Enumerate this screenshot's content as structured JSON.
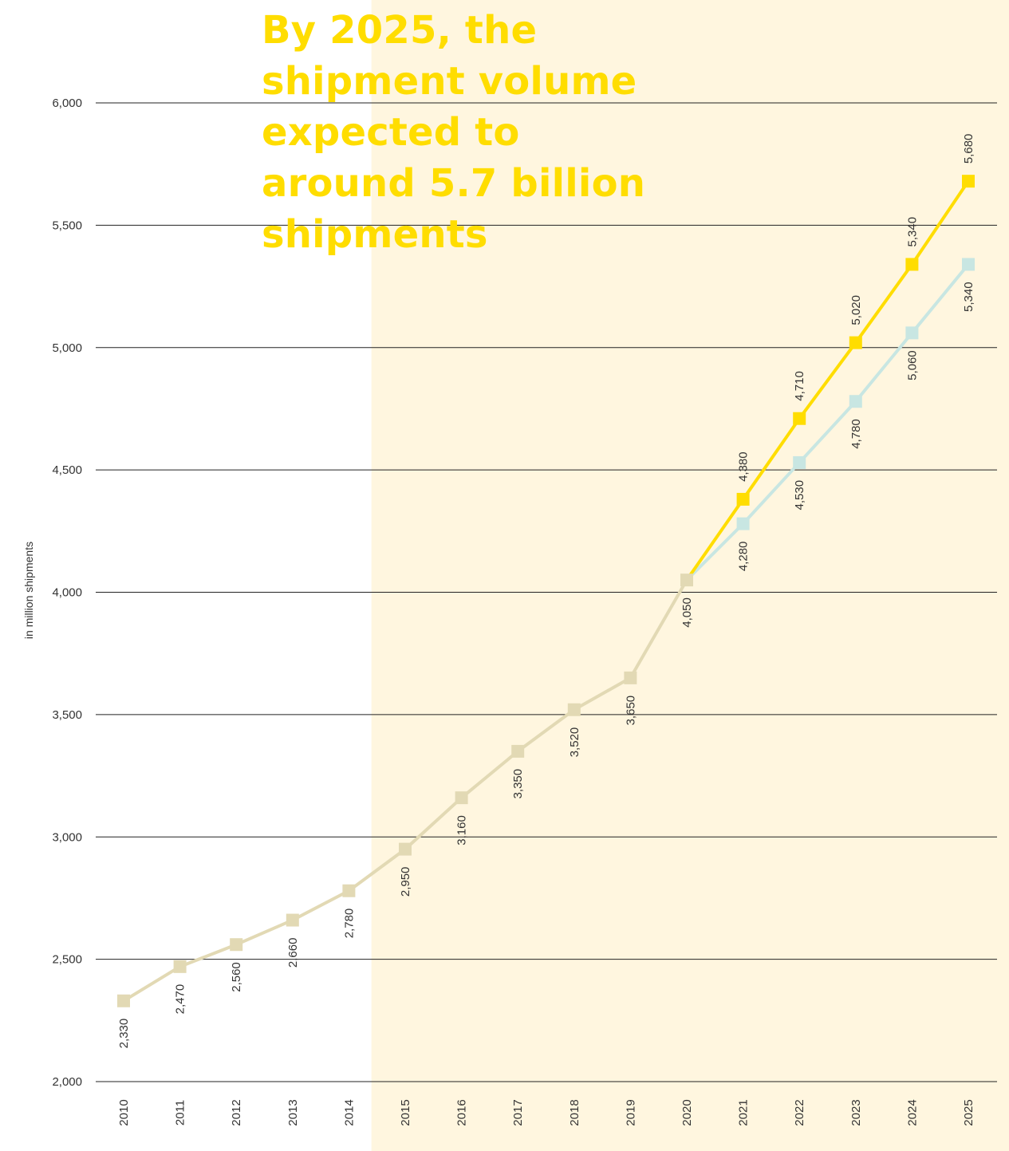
{
  "headline": "By 2025, the shipment volume expected to around 5.7 billion shipments",
  "colors": {
    "history": "#e2d9b4",
    "upper": "#ffdd00",
    "lower": "#c8e6e2",
    "forecast_bg": "#fff6df",
    "grid": "#222222"
  },
  "chart_data": {
    "type": "line",
    "title": "",
    "xlabel": "",
    "ylabel": "in million shipments",
    "ylim": [
      2000,
      6000
    ],
    "yticks": [
      2000,
      2500,
      3000,
      3500,
      4000,
      4500,
      5000,
      5500,
      6000
    ],
    "ytick_labels": [
      "2,000",
      "2,500",
      "3,000",
      "3,500",
      "4,000",
      "4,500",
      "5,000",
      "5,500",
      "6,000"
    ],
    "x": [
      "2010",
      "2011",
      "2012",
      "2013",
      "2014",
      "2015",
      "2016",
      "2017",
      "2018",
      "2019",
      "2020",
      "2021",
      "2022",
      "2023",
      "2024",
      "2025"
    ],
    "shaded_from": "2015",
    "grid": true,
    "series": [
      {
        "key": "history",
        "x": [
          "2010",
          "2011",
          "2012",
          "2013",
          "2014",
          "2015",
          "2016",
          "2017",
          "2018",
          "2019",
          "2020"
        ],
        "values": [
          2330,
          2470,
          2560,
          2660,
          2780,
          2950,
          3160,
          3350,
          3520,
          3650,
          4050
        ],
        "labels": [
          "2,330",
          "2,470",
          "2,560",
          "2,660",
          "2,780",
          "2,950",
          "3,160",
          "3,350",
          "3,520",
          "3,650",
          "4,050"
        ]
      },
      {
        "key": "upper",
        "x": [
          "2020",
          "2021",
          "2022",
          "2023",
          "2024",
          "2025"
        ],
        "values": [
          4050,
          4380,
          4710,
          5020,
          5340,
          5680
        ],
        "labels": [
          "",
          "4,380",
          "4,710",
          "5,020",
          "5,340",
          "5,680"
        ]
      },
      {
        "key": "lower",
        "x": [
          "2020",
          "2021",
          "2022",
          "2023",
          "2024",
          "2025"
        ],
        "values": [
          4050,
          4280,
          4530,
          4780,
          5060,
          5340
        ],
        "labels": [
          "",
          "4,280",
          "4,530",
          "4,780",
          "5,060",
          "5,340"
        ]
      }
    ]
  }
}
